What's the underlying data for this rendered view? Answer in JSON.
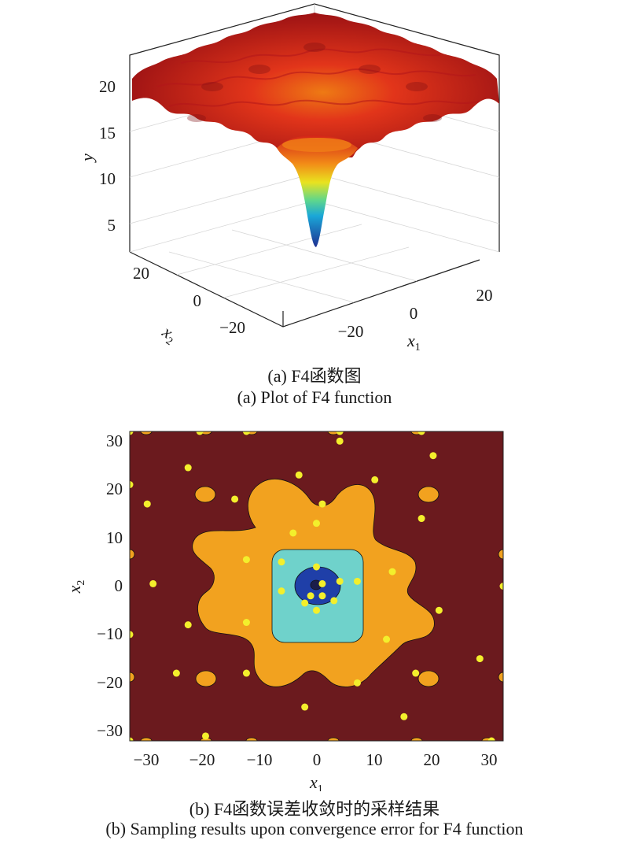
{
  "chart_data": [
    {
      "type": "surface",
      "panel": "a",
      "caption_zh": "(a) F4函数图",
      "caption_en": "(a) Plot of F4 function",
      "xlabel": "x1",
      "ylabel": "x2",
      "zlabel": "y",
      "xlim": [
        -32,
        32
      ],
      "ylim": [
        -32,
        32
      ],
      "zlim": [
        2,
        23
      ],
      "x_ticks": [
        -20,
        0,
        20
      ],
      "y_ticks": [
        -20,
        0,
        20
      ],
      "z_ticks": [
        5,
        10,
        15,
        20
      ],
      "function_profile": {
        "r": [
          0,
          2,
          4,
          6,
          8,
          10,
          15,
          20,
          30,
          40
        ],
        "y": [
          3,
          9,
          13,
          16,
          17.5,
          18.8,
          20.3,
          21.0,
          21.5,
          21.7
        ]
      },
      "global_minimum": {
        "x1": 0,
        "x2": 0,
        "y": 3
      },
      "colormap": "jet"
    },
    {
      "type": "contour",
      "panel": "b",
      "caption_zh": "(b) F4函数误差收敛时的采样结果",
      "caption_en": "(b) Sampling results upon convergence error for F4 function",
      "xlabel": "x1",
      "ylabel": "x2",
      "xlim": [
        -32,
        32
      ],
      "ylim": [
        -32,
        32
      ],
      "x_ticks": [
        -30,
        -20,
        -10,
        0,
        10,
        20,
        30
      ],
      "y_ticks": [
        -30,
        -20,
        -10,
        0,
        10,
        20,
        30
      ],
      "levels": [
        {
          "color": "#6b1a1e"
        },
        {
          "color": "#f2a21f"
        },
        {
          "color": "#6fd2cb"
        },
        {
          "color": "#1f3fa8"
        },
        {
          "color": "#1b1d4a"
        }
      ],
      "samples": [
        [
          -32,
          32
        ],
        [
          -20,
          32
        ],
        [
          -12,
          32
        ],
        [
          4,
          32
        ],
        [
          18,
          32
        ],
        [
          -32,
          21
        ],
        [
          -22,
          24.5
        ],
        [
          -29,
          17
        ],
        [
          -14,
          18
        ],
        [
          -3,
          23
        ],
        [
          1,
          17
        ],
        [
          10,
          22
        ],
        [
          20,
          27
        ],
        [
          4,
          30
        ],
        [
          -4,
          11
        ],
        [
          18,
          14
        ],
        [
          0,
          13
        ],
        [
          -12,
          5.5
        ],
        [
          -28,
          0.5
        ],
        [
          -6,
          5
        ],
        [
          -6,
          -1
        ],
        [
          0,
          4
        ],
        [
          1,
          0.5
        ],
        [
          -1,
          -2
        ],
        [
          1,
          -2
        ],
        [
          4,
          1
        ],
        [
          3,
          -3
        ],
        [
          0,
          -5
        ],
        [
          7,
          1
        ],
        [
          13,
          3
        ],
        [
          -2,
          -3.5
        ],
        [
          32,
          0
        ],
        [
          -22,
          -8
        ],
        [
          -12,
          -7.5
        ],
        [
          21,
          -5
        ],
        [
          -32,
          -10
        ],
        [
          12,
          -11
        ],
        [
          -24,
          -18
        ],
        [
          -12,
          -18
        ],
        [
          7,
          -20
        ],
        [
          17,
          -18
        ],
        [
          28,
          -15
        ],
        [
          -2,
          -25
        ],
        [
          15,
          -27
        ],
        [
          -19,
          -31
        ],
        [
          30,
          -32
        ],
        [
          -32,
          -32
        ]
      ],
      "marker_color": "#f3ef2c"
    }
  ],
  "captions": {
    "a_zh": "(a) F4函数图",
    "a_en": "(a) Plot of F4 function",
    "b_zh": "(b) F4函数误差收敛时的采样结果",
    "b_en": "(b) Sampling results upon convergence error for F4 function"
  },
  "axes_text": {
    "x1_main": "x",
    "x1_sub": "1",
    "x2_main": "x",
    "x2_sub": "2",
    "y_label": "y"
  }
}
